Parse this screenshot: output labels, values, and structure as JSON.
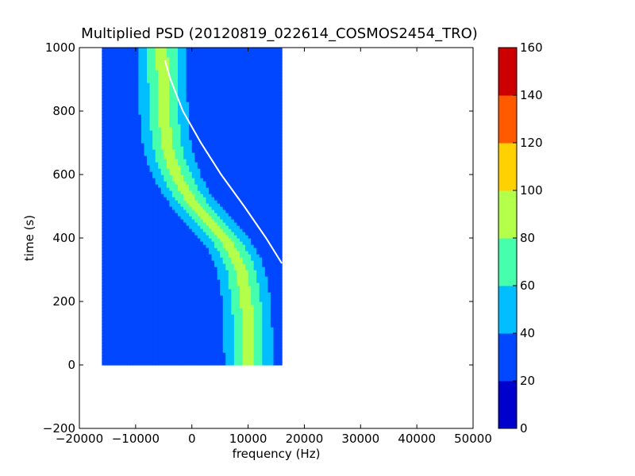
{
  "chart_data": {
    "type": "heatmap",
    "title": "Multiplied PSD (20120819_022614_COSMOS2454_TRO)",
    "xlabel": "frequency (Hz)",
    "ylabel": "time (s)",
    "xlim": [
      -20000,
      50000
    ],
    "ylim": [
      -200,
      1000
    ],
    "x_ticks": [
      -20000,
      -10000,
      0,
      10000,
      20000,
      30000,
      40000,
      50000
    ],
    "x_tick_labels": [
      "−20000",
      "−10000",
      "0",
      "10000",
      "20000",
      "30000",
      "40000",
      "50000"
    ],
    "y_ticks": [
      -200,
      0,
      200,
      400,
      600,
      800,
      1000
    ],
    "y_tick_labels": [
      "−200",
      "0",
      "200",
      "400",
      "600",
      "800",
      "1000"
    ],
    "data_extent": {
      "freq": [
        -16000,
        16000
      ],
      "time": [
        0,
        1000
      ]
    },
    "background_level": 30,
    "doppler_trace": {
      "time": [
        0,
        100,
        200,
        300,
        350,
        400,
        450,
        500,
        550,
        600,
        650,
        700,
        800,
        900,
        1000
      ],
      "freq": [
        10100,
        10000,
        9700,
        8800,
        7600,
        5800,
        3300,
        700,
        -1300,
        -2700,
        -3800,
        -4500,
        -5000,
        -5200,
        -5300
      ],
      "core_level": 85,
      "halfwidth_hz": 3300
    },
    "fit_curve": {
      "color": "#ffffff",
      "time": [
        960,
        900,
        800,
        700,
        600,
        500,
        400,
        320
      ],
      "freq": [
        -4800,
        -3800,
        -1600,
        1600,
        5200,
        9300,
        13200,
        16000
      ]
    },
    "colorbar": {
      "range": [
        0,
        160
      ],
      "levels": [
        0,
        20,
        40,
        60,
        80,
        100,
        120,
        140,
        160
      ],
      "tick_labels": [
        "0",
        "20",
        "40",
        "60",
        "80",
        "100",
        "120",
        "140",
        "160"
      ],
      "colors": [
        "#0000cc",
        "#0047ff",
        "#00beff",
        "#46ffad",
        "#b4ff4a",
        "#ffd100",
        "#ff5a00",
        "#cc0000"
      ]
    }
  }
}
